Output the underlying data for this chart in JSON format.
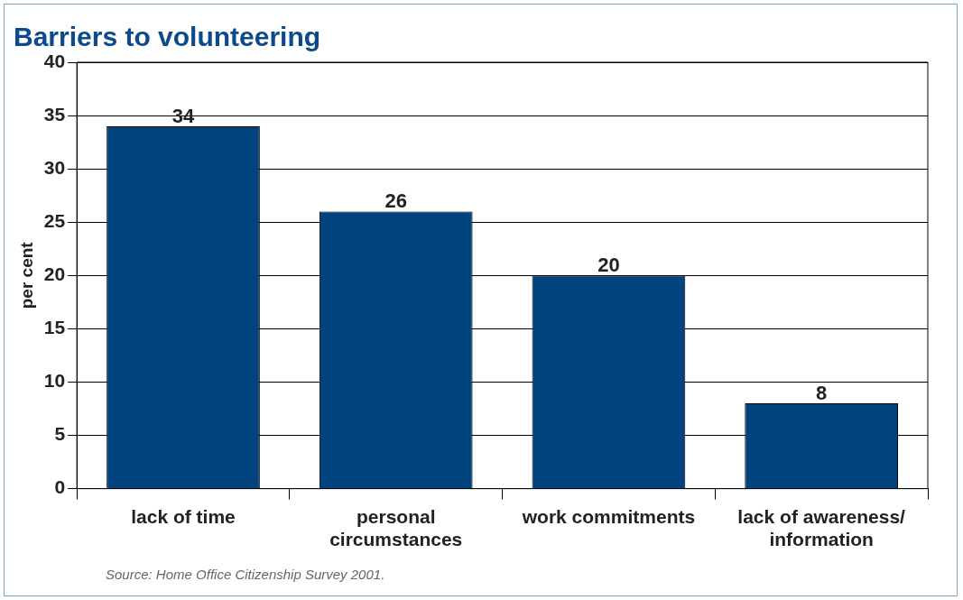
{
  "chart_data": {
    "type": "bar",
    "title": "Barriers to volunteering",
    "ylabel": "per cent",
    "categories": [
      "lack of time",
      "personal circumstances",
      "work commitments",
      "lack of awareness/ information"
    ],
    "values": [
      34,
      26,
      20,
      8
    ],
    "color": "#00437f",
    "ylim": [
      0,
      40
    ],
    "yticks": [
      0,
      5,
      10,
      15,
      20,
      25,
      30,
      35,
      40
    ],
    "grid": "y",
    "data_labels": true,
    "legend": false,
    "annotations": [
      "Source: Home Office Citizenship Survey 2001."
    ]
  }
}
